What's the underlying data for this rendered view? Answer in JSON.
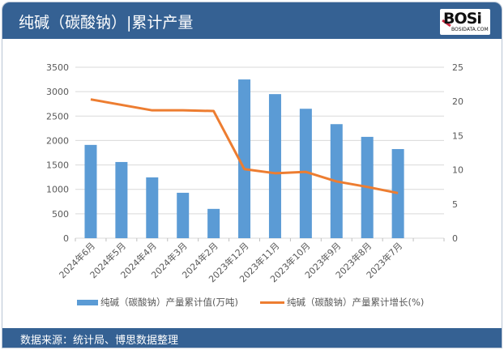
{
  "header": {
    "title": "纯碱（碳酸钠）|累计产量",
    "logo_text": "BOSi",
    "logo_sub": "BOSIDATA.COM"
  },
  "footer": {
    "source": "数据来源：统计局、博思数据整理"
  },
  "colors": {
    "header_bg": "#356193",
    "bar": "#5b9bd5",
    "line": "#ed7d31"
  },
  "chart_data": {
    "type": "bar+line",
    "categories": [
      "2024年6月",
      "2024年5月",
      "2024年4月",
      "2024年3月",
      "2024年2月",
      "2023年12月",
      "2023年11月",
      "2023年10月",
      "2023年9月",
      "2023年8月",
      "2023年7月"
    ],
    "series": [
      {
        "name": "纯碱（碳酸钠）产量累计值(万吨)",
        "type": "bar",
        "axis": "left",
        "values": [
          1910,
          1560,
          1245,
          930,
          600,
          3250,
          2950,
          2650,
          2335,
          2075,
          1825
        ]
      },
      {
        "name": "纯碱（碳酸钠）产量累计增长(%)",
        "type": "line",
        "axis": "right",
        "values": [
          20.3,
          19.5,
          18.7,
          18.7,
          18.6,
          10.1,
          9.5,
          9.7,
          8.3,
          7.5,
          6.6
        ]
      }
    ],
    "y_left": {
      "range": [
        0,
        3500
      ],
      "ticks": [
        "0",
        "500",
        "1000",
        "1500",
        "2000",
        "2500",
        "3000",
        "3500"
      ]
    },
    "y_right": {
      "range": [
        0,
        25
      ],
      "ticks": [
        "0",
        "5",
        "10",
        "15",
        "20",
        "25"
      ]
    },
    "grid": true,
    "legend": "bottom"
  }
}
